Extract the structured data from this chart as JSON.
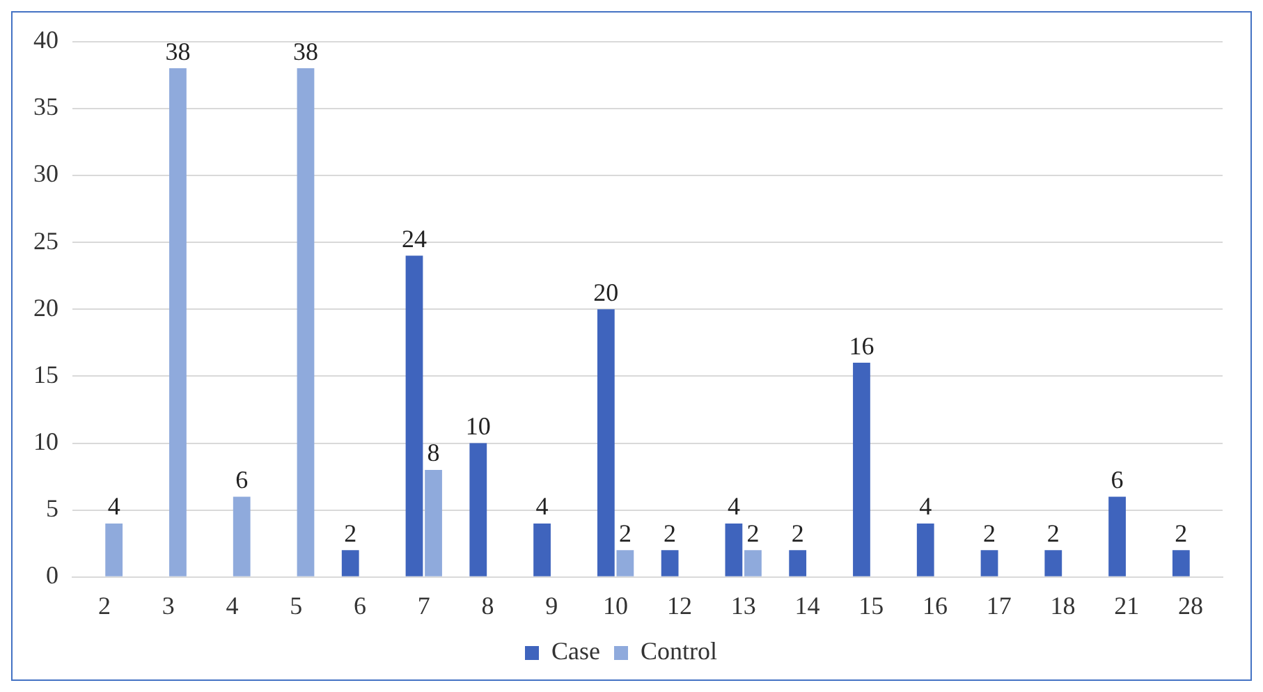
{
  "chart_data": {
    "type": "bar",
    "categories": [
      "2",
      "3",
      "4",
      "5",
      "6",
      "7",
      "8",
      "9",
      "10",
      "12",
      "13",
      "14",
      "15",
      "16",
      "17",
      "18",
      "21",
      "28"
    ],
    "series": [
      {
        "name": "Case",
        "color": "#3f64bd",
        "values": [
          null,
          null,
          null,
          null,
          2,
          24,
          10,
          4,
          20,
          2,
          4,
          2,
          16,
          4,
          2,
          2,
          6,
          2
        ]
      },
      {
        "name": "Control",
        "color": "#8faadc",
        "values": [
          4,
          38,
          6,
          38,
          null,
          8,
          null,
          null,
          2,
          null,
          2,
          null,
          null,
          null,
          null,
          null,
          null,
          null
        ]
      }
    ],
    "ylim": [
      0,
      40
    ],
    "yticks": [
      0,
      5,
      10,
      15,
      20,
      25,
      30,
      35,
      40
    ],
    "grid": "y",
    "legend": "bottom",
    "data_labels": true
  }
}
